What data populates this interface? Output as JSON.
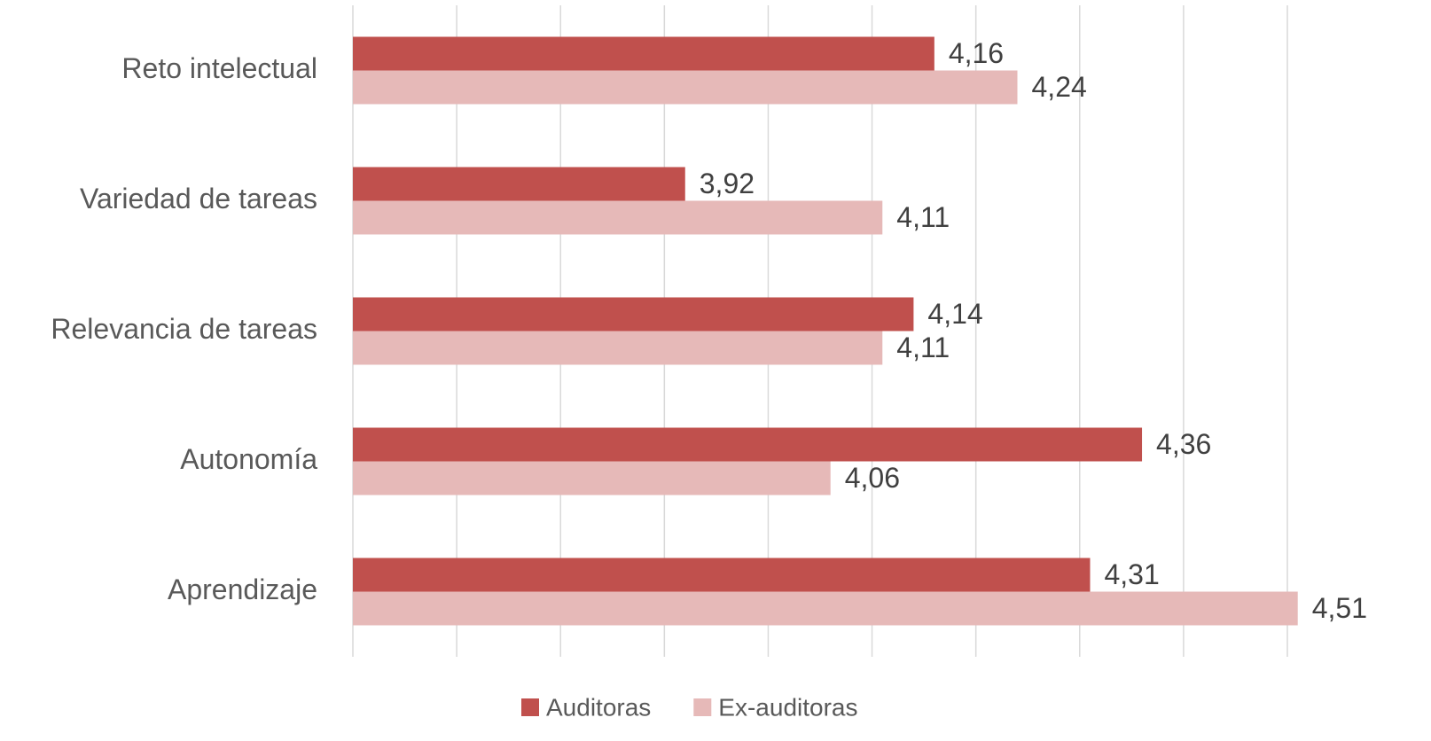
{
  "chart_data": {
    "type": "bar",
    "orientation": "horizontal",
    "categories": [
      "Reto intelectual",
      "Variedad de tareas",
      "Relevancia de tareas",
      "Autonomía",
      "Aprendizaje"
    ],
    "series": [
      {
        "name": "Auditoras",
        "color": "#c0504d",
        "values": [
          4.16,
          3.92,
          4.14,
          4.36,
          4.31
        ],
        "value_labels": [
          "4,16",
          "3,92",
          "4,14",
          "4,36",
          "4,31"
        ]
      },
      {
        "name": "Ex-auditoras",
        "color": "#e6b9b8",
        "values": [
          4.24,
          4.11,
          4.11,
          4.06,
          4.51
        ],
        "value_labels": [
          "4,24",
          "4,11",
          "4,11",
          "4,06",
          "4,51"
        ]
      }
    ],
    "xlim": [
      3.6,
      4.5
    ],
    "xticks": [
      3.6,
      3.7,
      3.8,
      3.9,
      4.0,
      4.1,
      4.2,
      4.3,
      4.4,
      4.5
    ],
    "grid": true,
    "legend": "bottom"
  }
}
